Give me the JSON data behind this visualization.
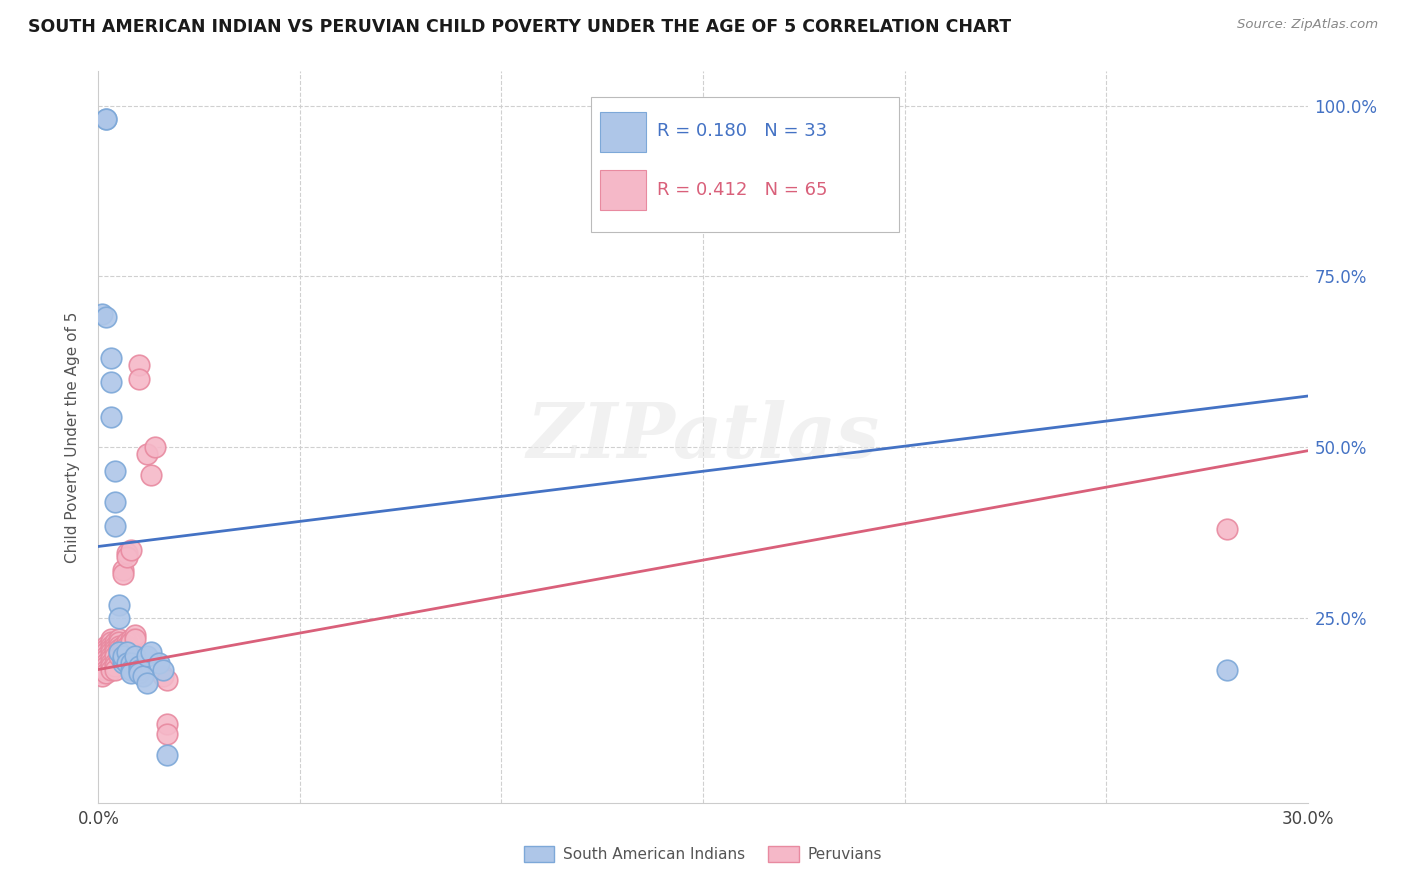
{
  "title": "SOUTH AMERICAN INDIAN VS PERUVIAN CHILD POVERTY UNDER THE AGE OF 5 CORRELATION CHART",
  "source": "Source: ZipAtlas.com",
  "ylabel": "Child Poverty Under the Age of 5",
  "xlim": [
    0.0,
    0.3
  ],
  "ylim": [
    -0.02,
    1.05
  ],
  "blue_R": 0.18,
  "blue_N": 33,
  "pink_R": 0.412,
  "pink_N": 65,
  "legend_label_blue": "South American Indians",
  "legend_label_pink": "Peruvians",
  "watermark": "ZIPatlas",
  "blue_color": "#aec6e8",
  "pink_color": "#f5b8c8",
  "blue_edge_color": "#7da8d8",
  "pink_edge_color": "#e88aa0",
  "blue_line_color": "#4472c4",
  "pink_line_color": "#d9607a",
  "ytick_vals": [
    0.0,
    0.25,
    0.5,
    0.75,
    1.0
  ],
  "ytick_labels_right": [
    "",
    "25.0%",
    "50.0%",
    "75.0%",
    "100.0%"
  ],
  "xtick_vals": [
    0.0,
    0.05,
    0.1,
    0.15,
    0.2,
    0.25,
    0.3
  ],
  "xtick_labels": [
    "0.0%",
    "",
    "",
    "",
    "",
    "",
    "30.0%"
  ],
  "blue_scatter": [
    [
      0.001,
      0.695
    ],
    [
      0.002,
      0.98
    ],
    [
      0.002,
      0.98
    ],
    [
      0.002,
      0.69
    ],
    [
      0.003,
      0.63
    ],
    [
      0.003,
      0.595
    ],
    [
      0.003,
      0.545
    ],
    [
      0.004,
      0.465
    ],
    [
      0.004,
      0.42
    ],
    [
      0.004,
      0.385
    ],
    [
      0.005,
      0.27
    ],
    [
      0.005,
      0.25
    ],
    [
      0.005,
      0.2
    ],
    [
      0.006,
      0.185
    ],
    [
      0.006,
      0.19
    ],
    [
      0.006,
      0.195
    ],
    [
      0.007,
      0.2
    ],
    [
      0.007,
      0.185
    ],
    [
      0.008,
      0.185
    ],
    [
      0.008,
      0.175
    ],
    [
      0.008,
      0.17
    ],
    [
      0.009,
      0.195
    ],
    [
      0.01,
      0.18
    ],
    [
      0.01,
      0.175
    ],
    [
      0.01,
      0.17
    ],
    [
      0.011,
      0.165
    ],
    [
      0.012,
      0.155
    ],
    [
      0.012,
      0.195
    ],
    [
      0.013,
      0.2
    ],
    [
      0.015,
      0.185
    ],
    [
      0.016,
      0.175
    ],
    [
      0.017,
      0.05
    ],
    [
      0.28,
      0.175
    ]
  ],
  "pink_scatter": [
    [
      0.001,
      0.2
    ],
    [
      0.001,
      0.195
    ],
    [
      0.001,
      0.19
    ],
    [
      0.001,
      0.185
    ],
    [
      0.001,
      0.18
    ],
    [
      0.001,
      0.175
    ],
    [
      0.001,
      0.17
    ],
    [
      0.001,
      0.165
    ],
    [
      0.002,
      0.21
    ],
    [
      0.002,
      0.205
    ],
    [
      0.002,
      0.2
    ],
    [
      0.002,
      0.195
    ],
    [
      0.002,
      0.19
    ],
    [
      0.002,
      0.185
    ],
    [
      0.002,
      0.18
    ],
    [
      0.002,
      0.175
    ],
    [
      0.002,
      0.17
    ],
    [
      0.003,
      0.22
    ],
    [
      0.003,
      0.215
    ],
    [
      0.003,
      0.21
    ],
    [
      0.003,
      0.205
    ],
    [
      0.003,
      0.2
    ],
    [
      0.003,
      0.195
    ],
    [
      0.003,
      0.19
    ],
    [
      0.003,
      0.185
    ],
    [
      0.003,
      0.18
    ],
    [
      0.003,
      0.175
    ],
    [
      0.004,
      0.215
    ],
    [
      0.004,
      0.21
    ],
    [
      0.004,
      0.205
    ],
    [
      0.004,
      0.2
    ],
    [
      0.004,
      0.195
    ],
    [
      0.004,
      0.185
    ],
    [
      0.004,
      0.18
    ],
    [
      0.004,
      0.175
    ],
    [
      0.005,
      0.22
    ],
    [
      0.005,
      0.215
    ],
    [
      0.005,
      0.21
    ],
    [
      0.005,
      0.205
    ],
    [
      0.005,
      0.2
    ],
    [
      0.005,
      0.195
    ],
    [
      0.006,
      0.32
    ],
    [
      0.006,
      0.315
    ],
    [
      0.006,
      0.21
    ],
    [
      0.006,
      0.205
    ],
    [
      0.006,
      0.2
    ],
    [
      0.007,
      0.345
    ],
    [
      0.007,
      0.34
    ],
    [
      0.007,
      0.215
    ],
    [
      0.007,
      0.21
    ],
    [
      0.008,
      0.35
    ],
    [
      0.008,
      0.22
    ],
    [
      0.008,
      0.215
    ],
    [
      0.009,
      0.225
    ],
    [
      0.009,
      0.22
    ],
    [
      0.01,
      0.62
    ],
    [
      0.01,
      0.6
    ],
    [
      0.012,
      0.49
    ],
    [
      0.013,
      0.46
    ],
    [
      0.014,
      0.5
    ],
    [
      0.016,
      0.165
    ],
    [
      0.017,
      0.16
    ],
    [
      0.017,
      0.095
    ],
    [
      0.017,
      0.08
    ],
    [
      0.28,
      0.38
    ]
  ],
  "blue_line_x": [
    0.0,
    0.3
  ],
  "blue_line_y": [
    0.355,
    0.575
  ],
  "pink_line_x": [
    0.0,
    0.3
  ],
  "pink_line_y": [
    0.175,
    0.495
  ]
}
